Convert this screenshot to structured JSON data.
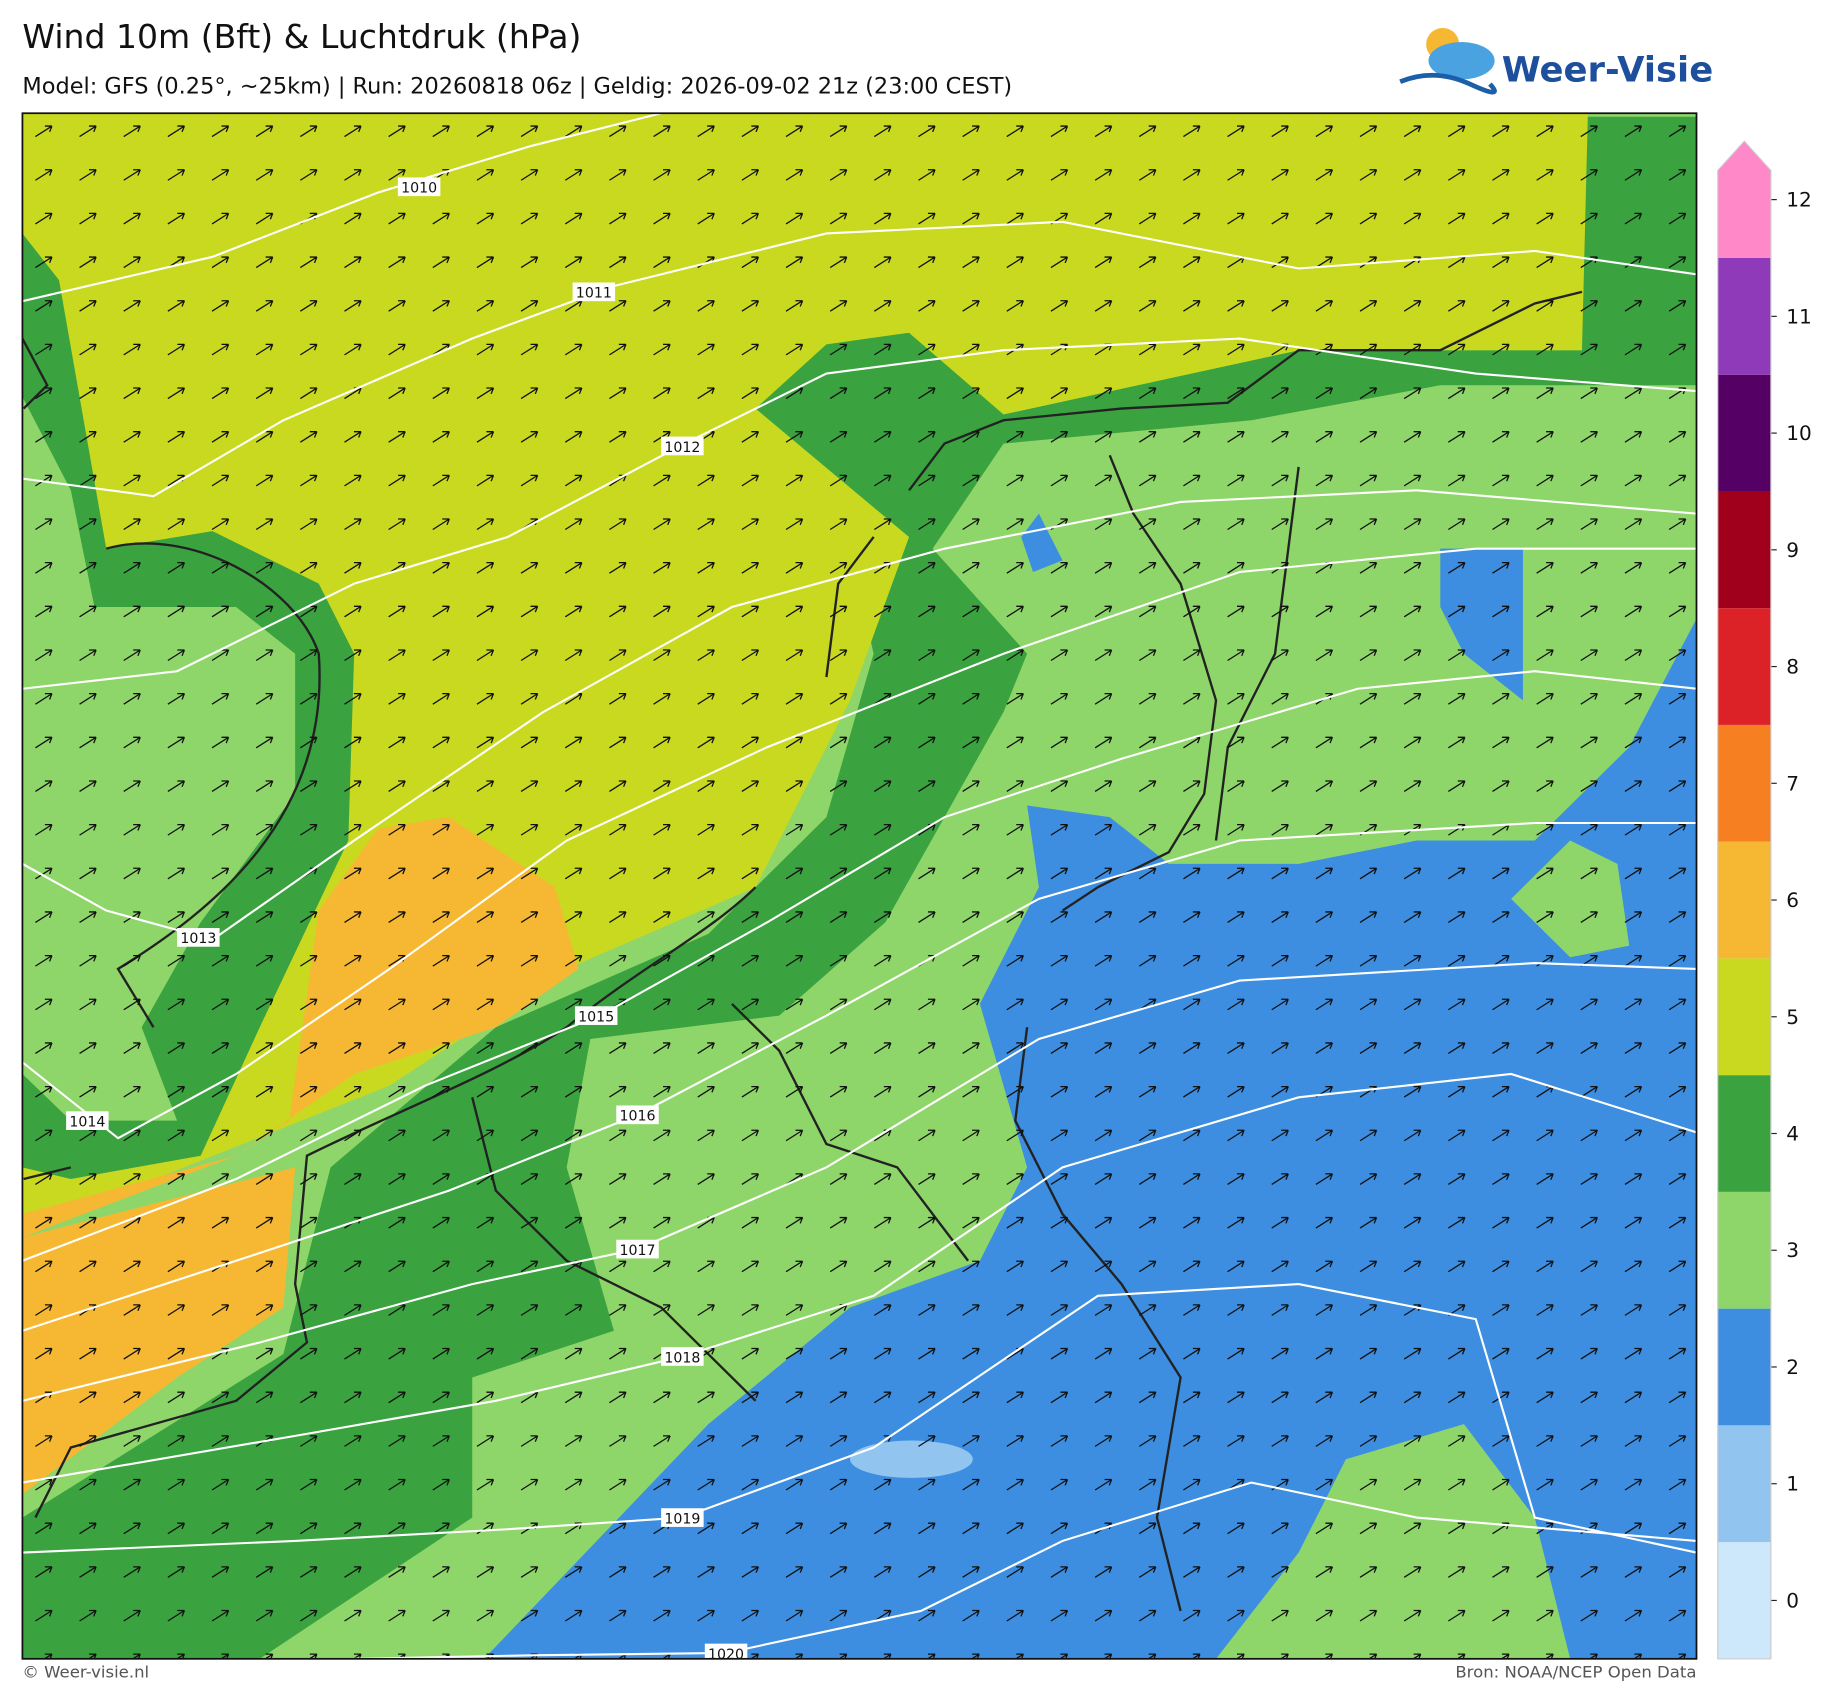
{
  "header": {
    "title": "Wind 10m (Bft) & Luchtdruk (hPa)",
    "subtitle": "Model: GFS (0.25°, ~25km)  |  Run: 20260818 06z  |  Geldig: 2026-09-02 21z (23:00 CEST)"
  },
  "logo": {
    "text": "Weer-Visie"
  },
  "isobars": [
    "1010",
    "1011",
    "1012",
    "1013",
    "1014",
    "1015",
    "1016",
    "1017",
    "1018",
    "1019",
    "1020"
  ],
  "colorbar": {
    "levels": [
      {
        "value": 0,
        "color": "#cde7fb"
      },
      {
        "value": 1,
        "color": "#91c5ef"
      },
      {
        "value": 2,
        "color": "#3d8ee0"
      },
      {
        "value": 3,
        "color": "#8fd66a"
      },
      {
        "value": 4,
        "color": "#3aa23f"
      },
      {
        "value": 5,
        "color": "#c8d920"
      },
      {
        "value": 6,
        "color": "#f6b832"
      },
      {
        "value": 7,
        "color": "#f57f21"
      },
      {
        "value": 8,
        "color": "#dd2227"
      },
      {
        "value": 9,
        "color": "#a1001c"
      },
      {
        "value": 10,
        "color": "#550065"
      },
      {
        "value": 11,
        "color": "#8f3ab9"
      },
      {
        "value": 12,
        "color": "#ff88c9"
      }
    ]
  },
  "footer": {
    "left": "© Weer-visie.nl",
    "right": "Bron: NOAA/NCEP Open Data"
  }
}
